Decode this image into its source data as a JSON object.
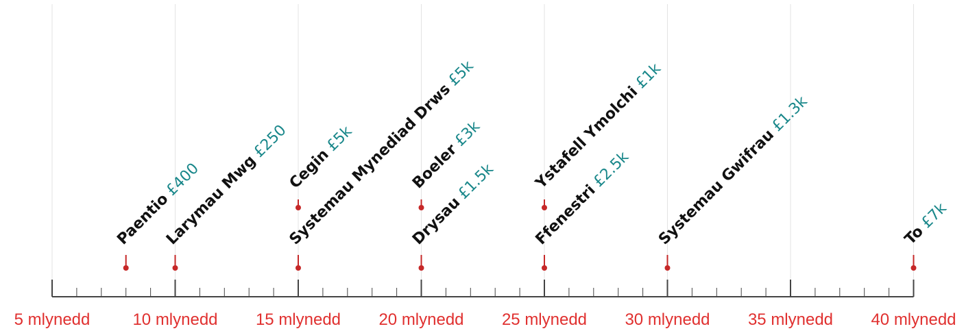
{
  "axis": {
    "labels": [
      {
        "years": 5,
        "text": "5 mlynedd"
      },
      {
        "years": 10,
        "text": "10 mlynedd"
      },
      {
        "years": 15,
        "text": "15 mlynedd"
      },
      {
        "years": 20,
        "text": "20 mlynedd"
      },
      {
        "years": 25,
        "text": "25 mlynedd"
      },
      {
        "years": 30,
        "text": "30 mlynedd"
      },
      {
        "years": 35,
        "text": "35 mlynedd"
      },
      {
        "years": 40,
        "text": "40 mlynedd"
      }
    ]
  },
  "items": [
    {
      "id": "paentio",
      "name": "Paentio",
      "cost": "£400",
      "years": 8,
      "row": "low"
    },
    {
      "id": "larymau-mwg",
      "name": "Larymau Mwg",
      "cost": "£250",
      "years": 10,
      "row": "low"
    },
    {
      "id": "cegin",
      "name": "Cegin",
      "cost": "£5k",
      "years": 15,
      "row": "high"
    },
    {
      "id": "systemau-mynediad-drws",
      "name": "Systemau Mynediad Drws",
      "cost": "£5k",
      "years": 15,
      "row": "low"
    },
    {
      "id": "boeler",
      "name": "Boeler",
      "cost": "£3k",
      "years": 20,
      "row": "high"
    },
    {
      "id": "drysau",
      "name": "Drysau",
      "cost": "£1.5k",
      "years": 20,
      "row": "low"
    },
    {
      "id": "ystafell-ymolchi",
      "name": "Ystafell Ymolchi",
      "cost": "£1k",
      "years": 25,
      "row": "high"
    },
    {
      "id": "ffenestri",
      "name": "Ffenestri",
      "cost": "£2.5k",
      "years": 25,
      "row": "low"
    },
    {
      "id": "systemau-gwifrau",
      "name": "Systemau Gwifrau",
      "cost": "£1.3k",
      "years": 30,
      "row": "low"
    },
    {
      "id": "to",
      "name": "To",
      "cost": "£7k",
      "years": 40,
      "row": "low"
    }
  ],
  "colors": {
    "axis_label": "#e0302f",
    "marker": "#c62828",
    "cost": "#19878a",
    "name": "#111111"
  }
}
